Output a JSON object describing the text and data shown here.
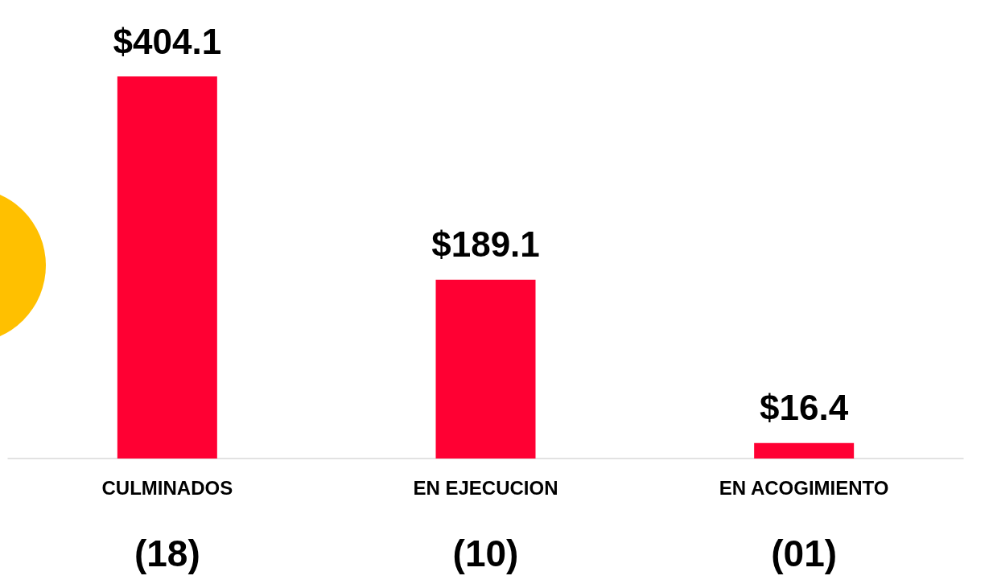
{
  "chart_data": {
    "type": "bar",
    "categories": [
      "CULMINADOS",
      "EN EJECUCION",
      "EN ACOGIMIENTO"
    ],
    "values": [
      404.1,
      189.1,
      16.4
    ],
    "color": "#ff0033",
    "value_labels": [
      "$404.1",
      "$189.1",
      "$16.4"
    ],
    "annotations": [
      "(18)",
      "(10)",
      "(01)"
    ]
  }
}
